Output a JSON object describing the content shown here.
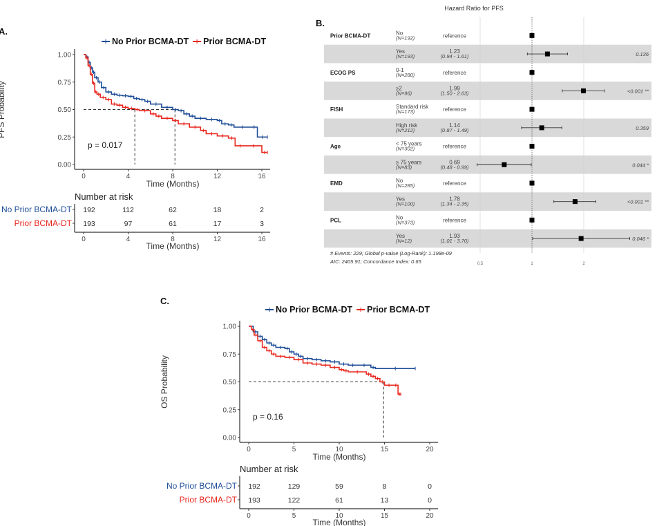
{
  "colors": {
    "no_prior": "#1f4e98",
    "prior": "#e8271e",
    "row_shade": "#d9d9d9"
  },
  "chart_data": [
    {
      "id": "A",
      "type": "line",
      "panel_label": "A.",
      "title": "",
      "xlabel": "Time (Months)",
      "ylabel": "PFS Probability",
      "xlim": [
        0,
        16.5
      ],
      "ylim": [
        0,
        1
      ],
      "xticks": [
        0,
        4,
        8,
        12,
        16
      ],
      "yticks": [
        "0.00",
        "0.25",
        "0.50",
        "0.75",
        "1.00"
      ],
      "legend_position": "top",
      "legend": [
        "No Prior BCMA-DT",
        "Prior BCMA-DT"
      ],
      "pvalue_text": "p = 0.017",
      "median_lines": [
        {
          "x": 4.6,
          "y": 0.5
        },
        {
          "x": 8.2,
          "y": 0.5
        }
      ],
      "series": [
        {
          "name": "No Prior BCMA-DT",
          "x": [
            0,
            0.2,
            0.4,
            0.6,
            0.8,
            1.0,
            1.3,
            1.6,
            2.0,
            2.5,
            3.0,
            3.5,
            4.0,
            4.5,
            5.0,
            5.5,
            6.0,
            7.0,
            8.0,
            8.5,
            9.0,
            9.5,
            10.0,
            11.0,
            12.0,
            12.4,
            13.0,
            13.5,
            15.0,
            15.6,
            16.5
          ],
          "y": [
            1.0,
            0.98,
            0.93,
            0.88,
            0.84,
            0.79,
            0.75,
            0.7,
            0.66,
            0.64,
            0.63,
            0.625,
            0.62,
            0.6,
            0.59,
            0.575,
            0.55,
            0.52,
            0.5,
            0.49,
            0.46,
            0.44,
            0.42,
            0.41,
            0.4,
            0.37,
            0.36,
            0.34,
            0.34,
            0.25,
            0.25
          ]
        },
        {
          "name": "Prior BCMA-DT",
          "x": [
            0,
            0.2,
            0.4,
            0.6,
            0.8,
            1.0,
            1.2,
            1.5,
            2.0,
            2.5,
            3.0,
            3.5,
            4.0,
            4.6,
            5.0,
            6.0,
            6.5,
            7.0,
            8.0,
            8.5,
            9.5,
            10.5,
            11.0,
            12.0,
            13.0,
            13.6,
            14.5,
            16.0,
            16.5
          ],
          "y": [
            1.0,
            0.97,
            0.9,
            0.82,
            0.74,
            0.66,
            0.64,
            0.61,
            0.59,
            0.55,
            0.54,
            0.52,
            0.51,
            0.5,
            0.49,
            0.46,
            0.44,
            0.42,
            0.4,
            0.37,
            0.34,
            0.31,
            0.28,
            0.26,
            0.24,
            0.17,
            0.17,
            0.11,
            0.11
          ]
        }
      ],
      "risk_table": {
        "title": "Number at risk",
        "xlabel": "Time (Months)",
        "times": [
          0,
          4,
          8,
          12,
          16
        ],
        "rows": [
          {
            "label": "No Prior BCMA-DT",
            "values": [
              192,
              112,
              62,
              18,
              2
            ]
          },
          {
            "label": "Prior BCMA-DT",
            "values": [
              193,
              97,
              61,
              17,
              3
            ]
          }
        ]
      }
    },
    {
      "id": "C",
      "type": "line",
      "panel_label": "C.",
      "title": "",
      "xlabel": "Time (Months)",
      "ylabel": "OS Probability",
      "xlim": [
        0,
        20.5
      ],
      "ylim": [
        0,
        1
      ],
      "xticks": [
        0,
        5,
        10,
        15,
        20
      ],
      "yticks": [
        "0.00",
        "0.25",
        "0.50",
        "0.75",
        "1.00"
      ],
      "legend_position": "top",
      "legend": [
        "No Prior BCMA-DT",
        "Prior BCMA-DT"
      ],
      "pvalue_text": "p = 0.16",
      "median_lines": [
        {
          "x": 14.9,
          "y": 0.5
        }
      ],
      "series": [
        {
          "name": "No Prior BCMA-DT",
          "x": [
            0,
            0.5,
            1.0,
            1.5,
            2.0,
            2.5,
            3.0,
            4.0,
            4.5,
            5.0,
            5.5,
            6.0,
            7.0,
            8.0,
            9.0,
            10.0,
            11.0,
            12.0,
            13.5,
            14.0,
            18.4
          ],
          "y": [
            1.0,
            0.95,
            0.91,
            0.88,
            0.85,
            0.83,
            0.81,
            0.8,
            0.77,
            0.75,
            0.73,
            0.71,
            0.7,
            0.69,
            0.68,
            0.66,
            0.65,
            0.65,
            0.63,
            0.62,
            0.62
          ]
        },
        {
          "name": "Prior BCMA-DT",
          "x": [
            0,
            0.3,
            0.6,
            1.0,
            1.5,
            2.0,
            2.5,
            3.0,
            4.0,
            5.0,
            6.0,
            7.0,
            8.0,
            9.0,
            10.0,
            10.5,
            11.0,
            13.0,
            13.5,
            14.0,
            14.5,
            15.0,
            16.0,
            16.5,
            16.8
          ],
          "y": [
            1.0,
            0.97,
            0.92,
            0.87,
            0.81,
            0.78,
            0.75,
            0.73,
            0.72,
            0.7,
            0.67,
            0.66,
            0.65,
            0.63,
            0.61,
            0.6,
            0.59,
            0.57,
            0.55,
            0.53,
            0.5,
            0.47,
            0.47,
            0.39,
            0.39
          ]
        }
      ],
      "risk_table": {
        "title": "Number at risk",
        "xlabel": "Time (Months)",
        "times": [
          0,
          5,
          10,
          15,
          20
        ],
        "rows": [
          {
            "label": "No Prior BCMA-DT",
            "values": [
              192,
              129,
              59,
              8,
              0
            ]
          },
          {
            "label": "Prior BCMA-DT",
            "values": [
              193,
              122,
              61,
              13,
              0
            ]
          }
        ]
      }
    },
    {
      "id": "B",
      "type": "scatter",
      "panel_label": "B.",
      "title": "Hazard Ratio for PFS",
      "xscale": "log",
      "xticks": [
        "0.5",
        "1",
        "2"
      ],
      "xlim": [
        0.45,
        4.0
      ],
      "rows": [
        {
          "variable": "Prior BCMA-DT",
          "level": "No",
          "n": "(N=192)",
          "hr": "reference",
          "ci": "",
          "p": "",
          "est": 1,
          "lo": null,
          "hi": null,
          "shaded": false
        },
        {
          "variable": "",
          "level": "Yes",
          "n": "(N=193)",
          "hr": "1.23",
          "ci": "(0.94 - 1.61)",
          "p": "0.136",
          "est": 1.23,
          "lo": 0.94,
          "hi": 1.61,
          "shaded": true
        },
        {
          "variable": "ECOG PS",
          "level": "0-1",
          "n": "(N=280)",
          "hr": "reference",
          "ci": "",
          "p": "",
          "est": 1,
          "lo": null,
          "hi": null,
          "shaded": false
        },
        {
          "variable": "",
          "level": "≥2",
          "n": "(N=96)",
          "hr": "1.99",
          "ci": "(1.50 - 2.63)",
          "p": "<0.001 **",
          "est": 1.99,
          "lo": 1.5,
          "hi": 2.63,
          "shaded": true
        },
        {
          "variable": "FISH",
          "level": "Standard risk",
          "n": "(N=173)",
          "hr": "reference",
          "ci": "",
          "p": "",
          "est": 1,
          "lo": null,
          "hi": null,
          "shaded": false
        },
        {
          "variable": "",
          "level": "High risk",
          "n": "(N=212)",
          "hr": "1.14",
          "ci": "(0.87 - 1.49)",
          "p": "0.359",
          "est": 1.14,
          "lo": 0.87,
          "hi": 1.49,
          "shaded": true
        },
        {
          "variable": "Age",
          "level": "< 75 years",
          "n": "(N=302)",
          "hr": "reference",
          "ci": "",
          "p": "",
          "est": 1,
          "lo": null,
          "hi": null,
          "shaded": false
        },
        {
          "variable": "",
          "level": "≥ 75 years",
          "n": "(N=83)",
          "hr": "0.69",
          "ci": "(0.48 - 0.99)",
          "p": "0.044 *",
          "est": 0.69,
          "lo": 0.48,
          "hi": 0.99,
          "shaded": true
        },
        {
          "variable": "EMD",
          "level": "No",
          "n": "(N=285)",
          "hr": "reference",
          "ci": "",
          "p": "",
          "est": 1,
          "lo": null,
          "hi": null,
          "shaded": false
        },
        {
          "variable": "",
          "level": "Yes",
          "n": "(N=100)",
          "hr": "1.78",
          "ci": "(1.34 - 2.35)",
          "p": "<0.001 **",
          "est": 1.78,
          "lo": 1.34,
          "hi": 2.35,
          "shaded": true
        },
        {
          "variable": "PCL",
          "level": "No",
          "n": "(N=373)",
          "hr": "reference",
          "ci": "",
          "p": "",
          "est": 1,
          "lo": null,
          "hi": null,
          "shaded": false
        },
        {
          "variable": "",
          "level": "Yes",
          "n": "(N=12)",
          "hr": "1.93",
          "ci": "(1.01 - 3.70)",
          "p": "0.046 *",
          "est": 1.93,
          "lo": 1.01,
          "hi": 3.7,
          "shaded": true
        }
      ],
      "footnote_1": "# Events: 229; Global p-value (Log-Rank): 1.198e-09",
      "footnote_2": "AIC: 2405.91; Concordance Index: 0.65"
    }
  ]
}
